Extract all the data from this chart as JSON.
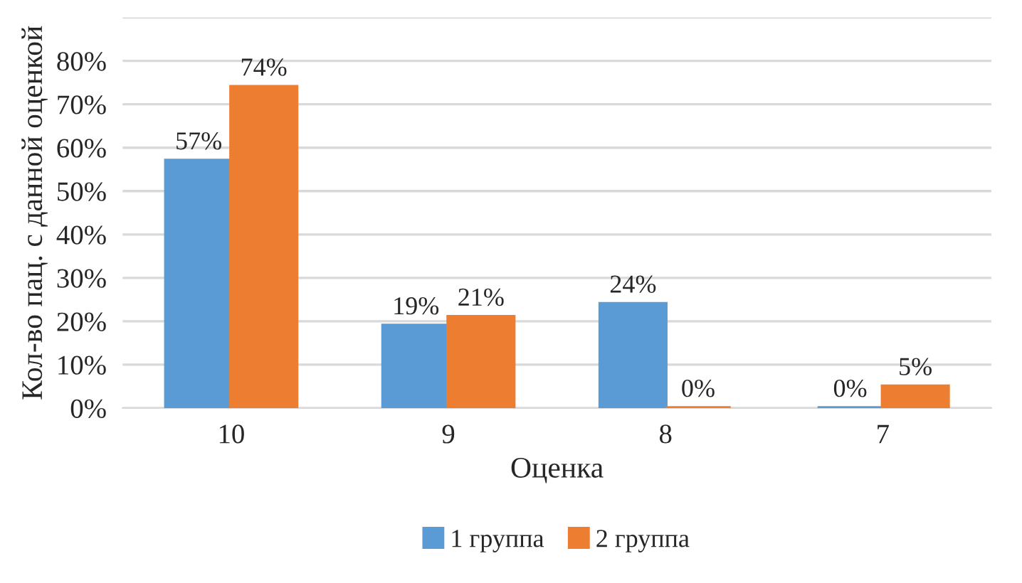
{
  "chart_data": {
    "type": "bar",
    "xlabel": "Оценка",
    "ylabel": "Кол-во пац. с данной оценкой",
    "categories": [
      "10",
      "9",
      "8",
      "7"
    ],
    "series": [
      {
        "name": "1 группа",
        "color": "#5b9bd5",
        "values": [
          57,
          19,
          24,
          0
        ],
        "value_labels": [
          "57%",
          "19%",
          "24%",
          "0%"
        ]
      },
      {
        "name": "2 группа",
        "color": "#ed7d31",
        "values": [
          74,
          21,
          0,
          5
        ],
        "value_labels": [
          "74%",
          "21%",
          "0%",
          "5%"
        ]
      }
    ],
    "ylim": [
      0,
      90
    ],
    "yticks": [
      {
        "value": 0,
        "label": "0%"
      },
      {
        "value": 10,
        "label": "10%"
      },
      {
        "value": 20,
        "label": "20%"
      },
      {
        "value": 30,
        "label": "30%"
      },
      {
        "value": 40,
        "label": "40%"
      },
      {
        "value": 50,
        "label": "50%"
      },
      {
        "value": 60,
        "label": "60%"
      },
      {
        "value": 70,
        "label": "70%"
      },
      {
        "value": 80,
        "label": "80%"
      },
      {
        "value": 90,
        "label": null
      }
    ],
    "grid": "y",
    "legend": "bottom"
  }
}
